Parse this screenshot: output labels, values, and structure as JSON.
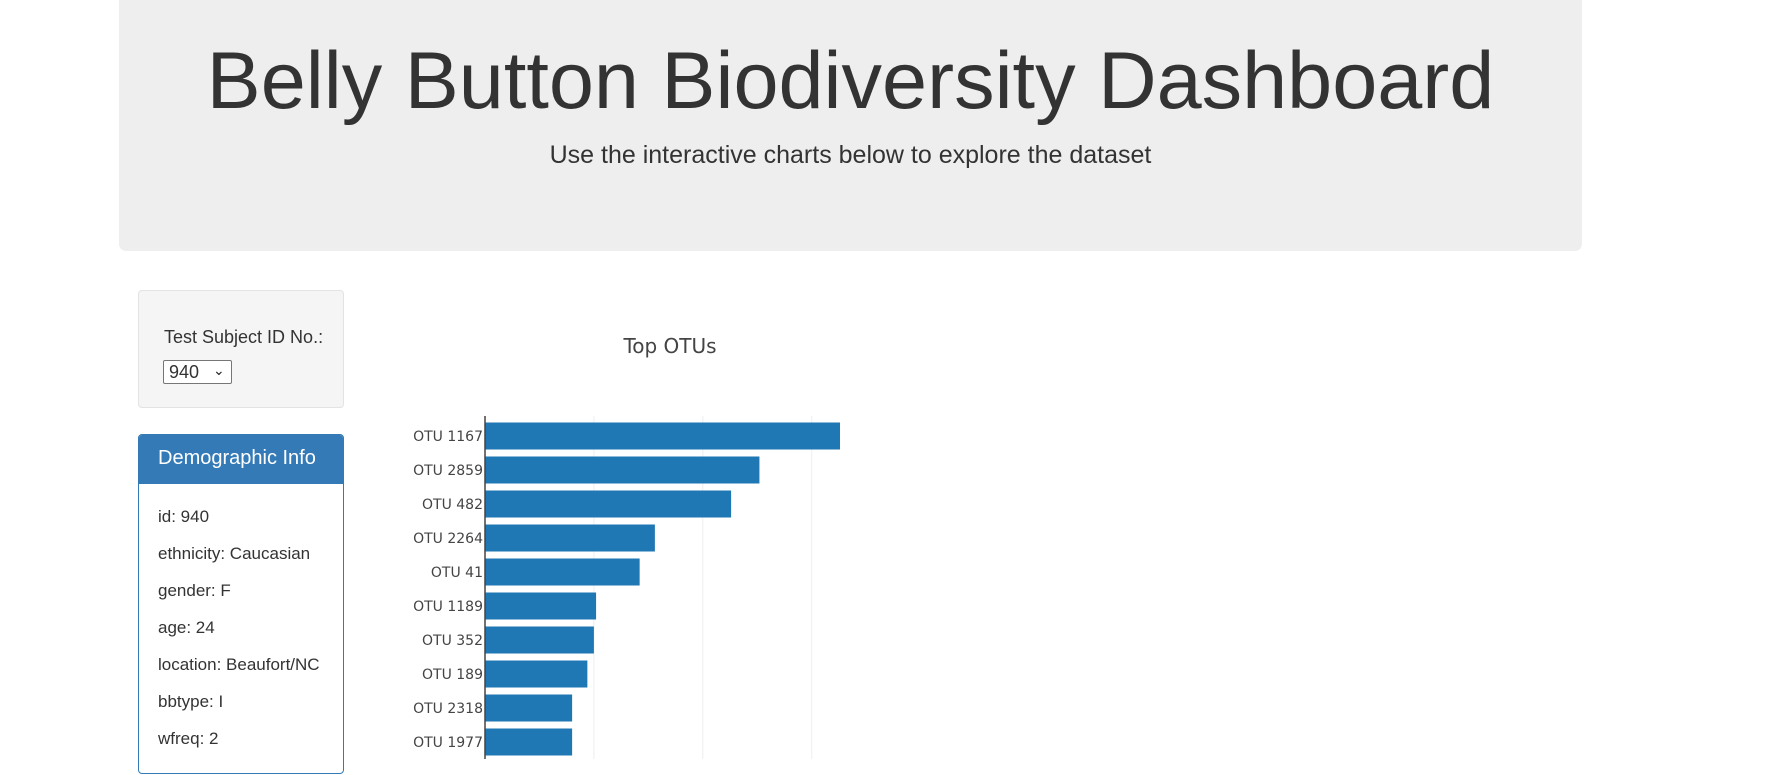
{
  "header": {
    "title": "Belly Button Biodiversity Dashboard",
    "subtitle": "Use the interactive charts below to explore the dataset"
  },
  "selector": {
    "label": "Test Subject ID No.:",
    "selected_value": "940"
  },
  "demographics": {
    "heading": "Demographic Info",
    "items": [
      "id: 940",
      "ethnicity: Caucasian",
      "gender: F",
      "age: 24",
      "location: Beaufort/NC",
      "bbtype: I",
      "wfreq: 2"
    ]
  },
  "colors": {
    "bar": "#1f77b4",
    "panel_primary": "#337ab7",
    "jumbotron_bg": "#eeeeee"
  },
  "chart_data": {
    "type": "bar",
    "orientation": "horizontal",
    "title": "Top OTUs",
    "categories": [
      "OTU 1167",
      "OTU 2859",
      "OTU 482",
      "OTU 2264",
      "OTU 41",
      "OTU 1189",
      "OTU 352",
      "OTU 189",
      "OTU 2318",
      "OTU 1977"
    ],
    "values": [
      163,
      126,
      113,
      78,
      71,
      51,
      50,
      47,
      40,
      40
    ],
    "xlim": [
      0,
      170
    ],
    "xticks": [
      "0",
      "50",
      "100",
      "150"
    ],
    "grid": true
  }
}
